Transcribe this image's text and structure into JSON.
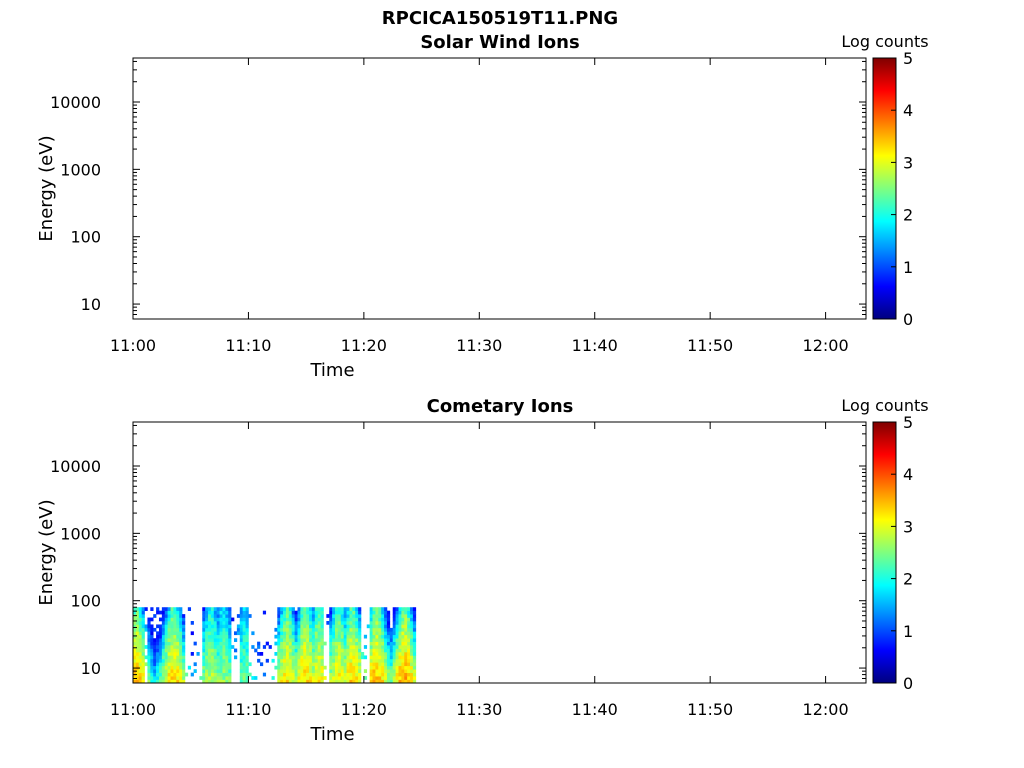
{
  "figure_title": "RPCICA150519T11.PNG",
  "colors": {
    "axis": "#000000",
    "colormap": [
      "#00007f",
      "#0000ff",
      "#007fff",
      "#00ffff",
      "#7fff7f",
      "#ffff00",
      "#ff7f00",
      "#ff0000",
      "#7f0000"
    ]
  },
  "chart_data": [
    {
      "type": "heatmap",
      "title": "Solar Wind Ions",
      "xlabel": "Time",
      "ylabel": "Energy (eV)",
      "x_tick_labels": [
        "11:00",
        "11:10",
        "11:20",
        "11:30",
        "11:40",
        "11:50",
        "12:00"
      ],
      "x_ticks_min": [
        0,
        10,
        20,
        30,
        40,
        50,
        60
      ],
      "xlim_min": [
        0,
        63.5
      ],
      "y_scale": "log",
      "y_tick_labels": [
        "10",
        "100",
        "1000",
        "10000"
      ],
      "y_ticks": [
        10,
        100,
        1000,
        10000
      ],
      "ylim": [
        6,
        45000
      ],
      "colorbar": {
        "label": "Log counts",
        "range": [
          0,
          5
        ],
        "tick_labels": [
          "0",
          "1",
          "2",
          "3",
          "4",
          "5"
        ],
        "colormap": "jet"
      },
      "data": []
    },
    {
      "type": "heatmap",
      "title": "Cometary Ions",
      "xlabel": "Time",
      "ylabel": "Energy (eV)",
      "x_tick_labels": [
        "11:00",
        "11:10",
        "11:20",
        "11:30",
        "11:40",
        "11:50",
        "12:00"
      ],
      "x_ticks_min": [
        0,
        10,
        20,
        30,
        40,
        50,
        60
      ],
      "xlim_min": [
        0,
        63.5
      ],
      "y_scale": "log",
      "y_tick_labels": [
        "10",
        "100",
        "1000",
        "10000"
      ],
      "y_ticks": [
        10,
        100,
        1000,
        10000
      ],
      "ylim": [
        6,
        45000
      ],
      "colorbar": {
        "label": "Log counts",
        "range": [
          0,
          5
        ],
        "tick_labels": [
          "0",
          "1",
          "2",
          "3",
          "4",
          "5"
        ],
        "colormap": "jet"
      },
      "data_extent": {
        "time_min": [
          0,
          24.5
        ],
        "energy_eV": [
          6,
          80
        ]
      },
      "gaps_min": [
        [
          0.8,
          1.2
        ],
        [
          4.5,
          6.0
        ],
        [
          8.4,
          9.2
        ],
        [
          10.0,
          12.4
        ],
        [
          16.5,
          17.0
        ],
        [
          19.6,
          20.4
        ]
      ],
      "bursts": [
        {
          "t_min": 0.2,
          "peak": 3.3
        },
        {
          "t_min": 3.4,
          "peak": 3.2
        },
        {
          "t_min": 6.6,
          "peak": 2.7
        },
        {
          "t_min": 7.7,
          "peak": 2.5
        },
        {
          "t_min": 9.6,
          "peak": 2.3
        },
        {
          "t_min": 13.2,
          "peak": 3.1
        },
        {
          "t_min": 14.8,
          "peak": 3.2
        },
        {
          "t_min": 16.0,
          "peak": 3.0
        },
        {
          "t_min": 17.7,
          "peak": 3.0
        },
        {
          "t_min": 18.9,
          "peak": 3.2
        },
        {
          "t_min": 21.0,
          "peak": 3.3
        },
        {
          "t_min": 23.4,
          "peak": 3.4
        }
      ]
    }
  ]
}
